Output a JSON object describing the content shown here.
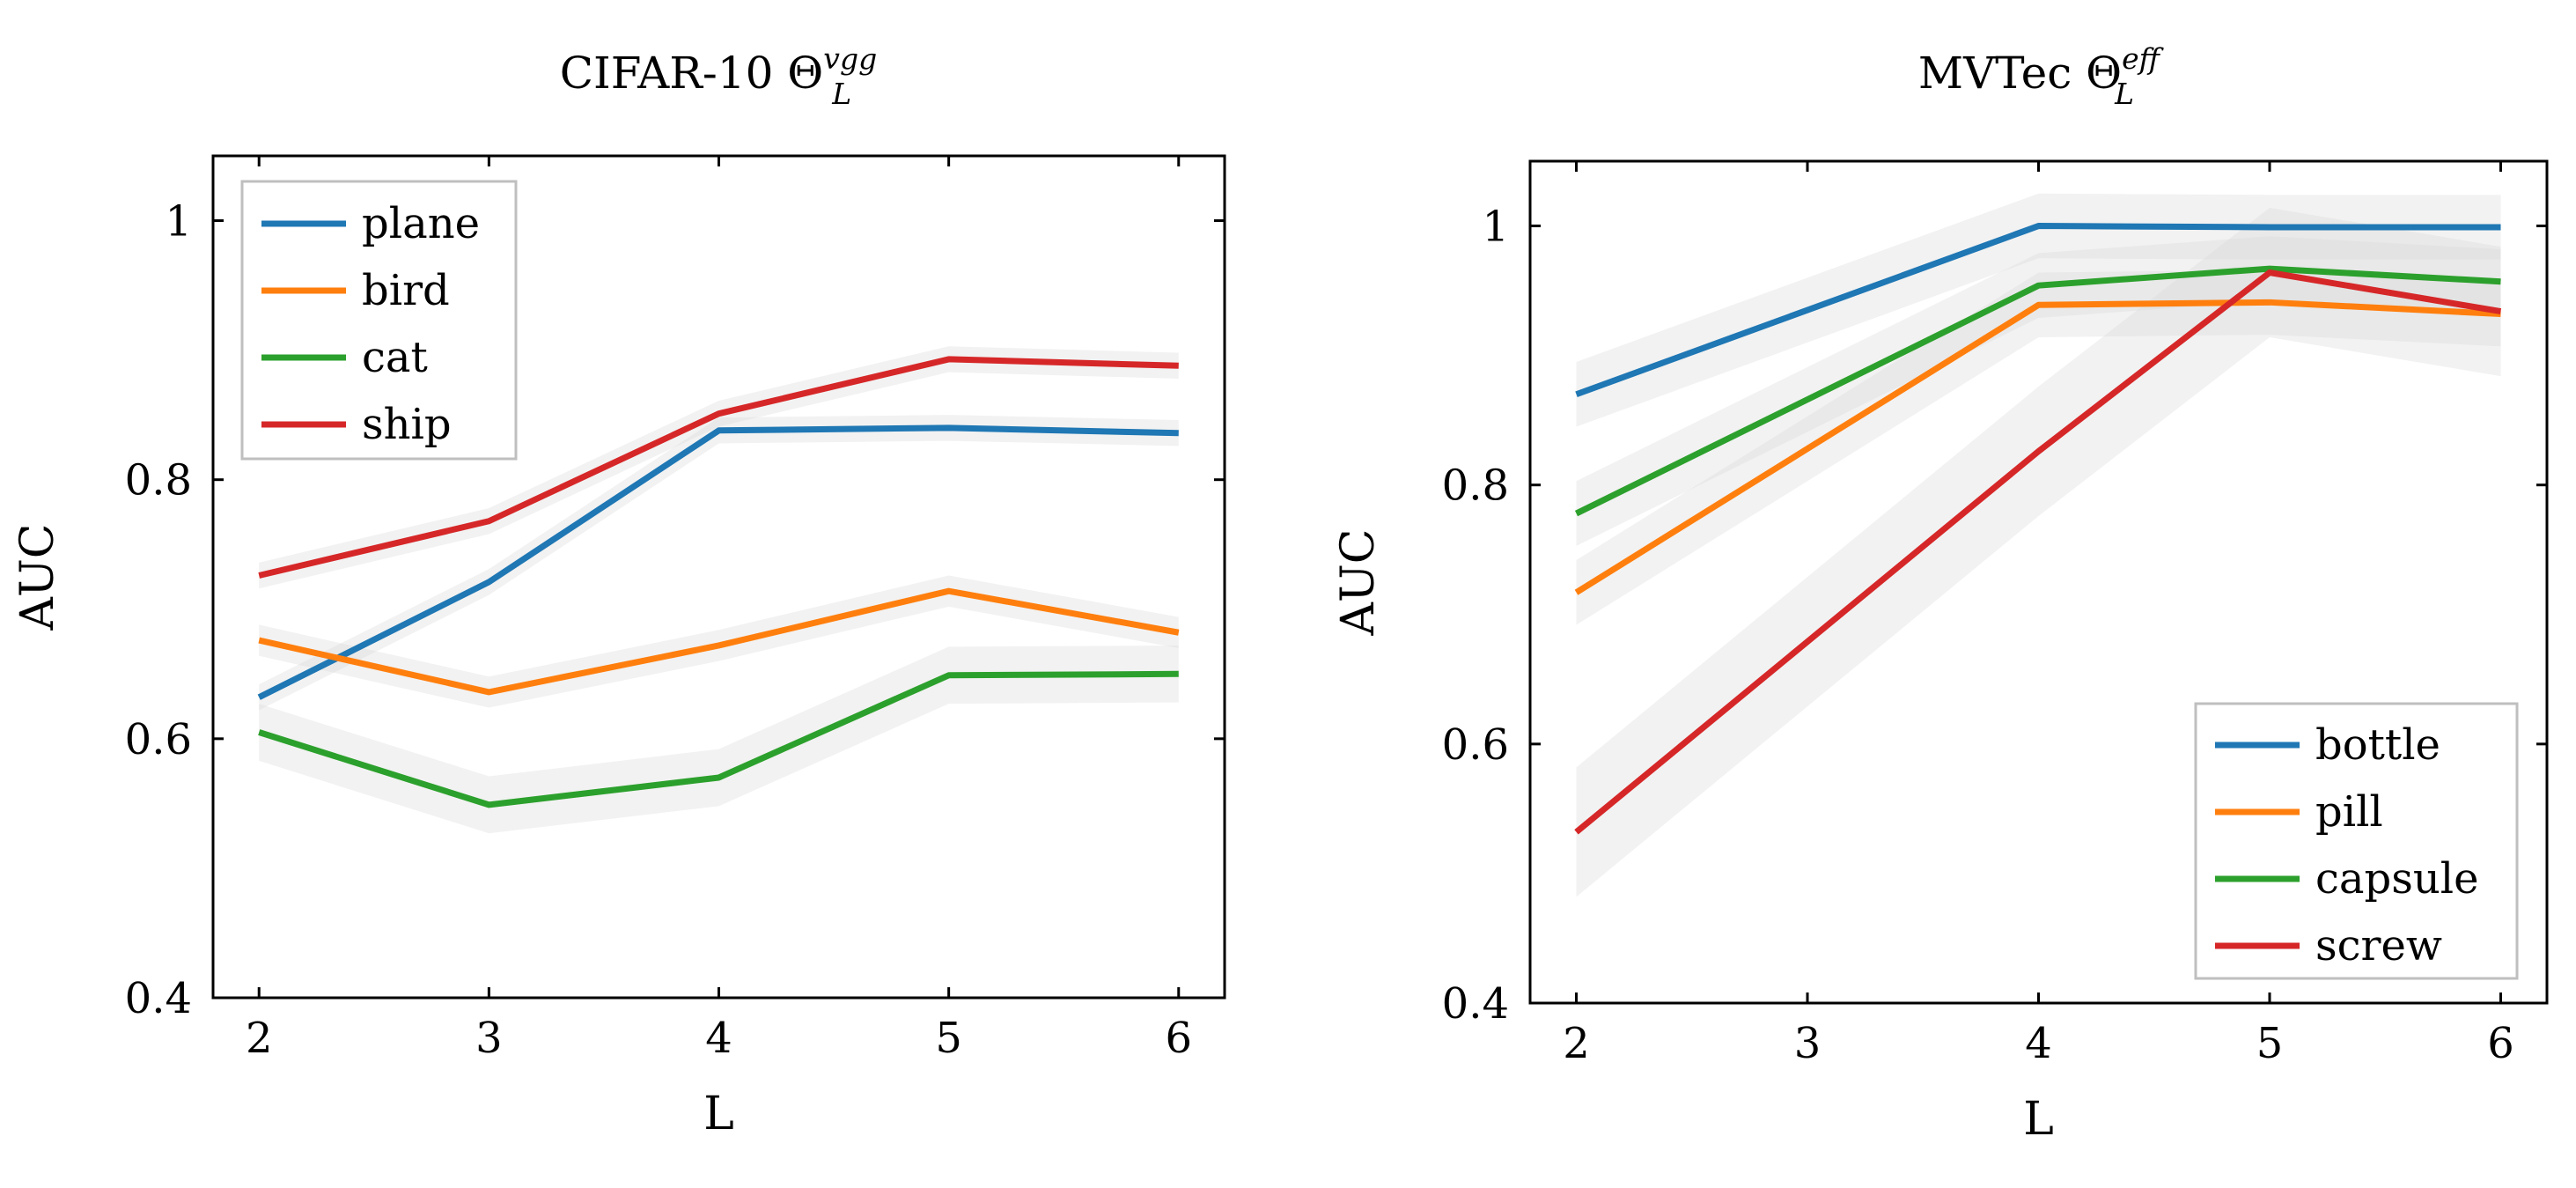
{
  "chart_data": [
    {
      "type": "line",
      "title": {
        "prefix": "CIFAR-10 ",
        "symbol": "Θ",
        "sub": "L",
        "sup": "vgg"
      },
      "xlabel": "L",
      "ylabel": "AUC",
      "x": [
        2,
        3,
        4,
        5,
        6
      ],
      "xticks": [
        "2",
        "3",
        "4",
        "5",
        "6"
      ],
      "yticks": [
        "0.4",
        "0.6",
        "0.8",
        "1"
      ],
      "ylim": [
        0.4,
        1.05
      ],
      "legend_position": "top-left",
      "series": [
        {
          "name": "plane",
          "color": "#1f77b4",
          "values": [
            0.632,
            0.721,
            0.838,
            0.84,
            0.836
          ],
          "band": 0.01
        },
        {
          "name": "bird",
          "color": "#ff7f0e",
          "values": [
            0.676,
            0.636,
            0.672,
            0.714,
            0.682
          ],
          "band": 0.012
        },
        {
          "name": "cat",
          "color": "#2ca02c",
          "values": [
            0.605,
            0.549,
            0.57,
            0.649,
            0.65
          ],
          "band": 0.022
        },
        {
          "name": "ship",
          "color": "#d62728",
          "values": [
            0.726,
            0.768,
            0.851,
            0.893,
            0.888
          ],
          "band": 0.01
        }
      ]
    },
    {
      "type": "line",
      "title": {
        "prefix": "MVTec ",
        "symbol": "Θ",
        "sub": "L",
        "sup": "eff"
      },
      "xlabel": "L",
      "ylabel": "AUC",
      "x": [
        2,
        4,
        5,
        6
      ],
      "xticks": [
        "2",
        "3",
        "4",
        "5",
        "6"
      ],
      "yticks": [
        "0.4",
        "0.6",
        "0.8",
        "1"
      ],
      "ylim": [
        0.4,
        1.05
      ],
      "legend_position": "bottom-right",
      "series": [
        {
          "name": "bottle",
          "color": "#1f77b4",
          "values": [
            0.87,
            1.0,
            0.999,
            0.999
          ],
          "band": 0.025
        },
        {
          "name": "pill",
          "color": "#ff7f0e",
          "values": [
            0.717,
            0.939,
            0.941,
            0.932
          ],
          "band": 0.025
        },
        {
          "name": "capsule",
          "color": "#2ca02c",
          "values": [
            0.778,
            0.954,
            0.967,
            0.957
          ],
          "band": 0.025
        },
        {
          "name": "screw",
          "color": "#d62728",
          "values": [
            0.532,
            0.826,
            0.964,
            0.934
          ],
          "band": 0.05
        }
      ]
    }
  ]
}
